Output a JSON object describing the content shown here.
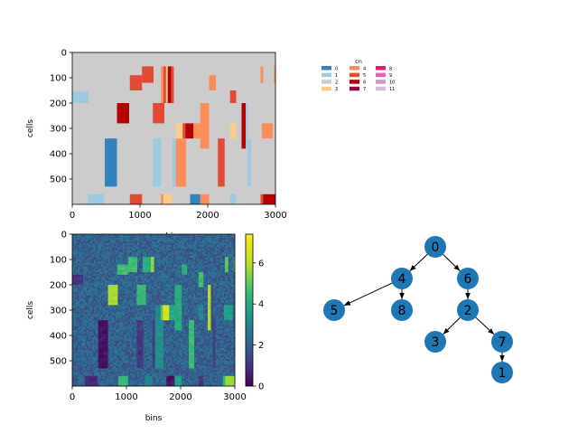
{
  "chart_data": [
    {
      "type": "heatmap",
      "panel": "copy-number-state",
      "xlabel": "bins",
      "ylabel": "cells",
      "xlim": [
        0,
        3000
      ],
      "ylim": [
        600,
        0
      ],
      "xticks": [
        0,
        1000,
        2000,
        3000
      ],
      "yticks": [
        0,
        100,
        200,
        300,
        400,
        500
      ],
      "background_state": 2,
      "segments": [
        {
          "state": 5,
          "x": [
            1030,
            1200
          ],
          "y": [
            55,
            120
          ]
        },
        {
          "state": 4,
          "x": [
            1310,
            1345
          ],
          "y": [
            55,
            200
          ]
        },
        {
          "state": 5,
          "x": [
            1345,
            1385
          ],
          "y": [
            55,
            200
          ]
        },
        {
          "state": 3,
          "x": [
            1385,
            1410
          ],
          "y": [
            55,
            200
          ]
        },
        {
          "state": 6,
          "x": [
            1410,
            1460
          ],
          "y": [
            55,
            200
          ]
        },
        {
          "state": 5,
          "x": [
            1460,
            1500
          ],
          "y": [
            55,
            200
          ]
        },
        {
          "state": 4,
          "x": [
            2780,
            2820
          ],
          "y": [
            55,
            120
          ]
        },
        {
          "state": 4,
          "x": [
            2980,
            3000
          ],
          "y": [
            55,
            120
          ]
        },
        {
          "state": 5,
          "x": [
            850,
            1030
          ],
          "y": [
            90,
            150
          ]
        },
        {
          "state": 4,
          "x": [
            2020,
            2120
          ],
          "y": [
            90,
            150
          ]
        },
        {
          "state": 5,
          "x": [
            2330,
            2420
          ],
          "y": [
            150,
            200
          ]
        },
        {
          "state": 1,
          "x": [
            0,
            240
          ],
          "y": [
            155,
            200
          ]
        },
        {
          "state": 6,
          "x": [
            660,
            840
          ],
          "y": [
            200,
            280
          ]
        },
        {
          "state": 5,
          "x": [
            1190,
            1360
          ],
          "y": [
            200,
            280
          ]
        },
        {
          "state": 4,
          "x": [
            1890,
            2020
          ],
          "y": [
            200,
            380
          ]
        },
        {
          "state": 6,
          "x": [
            2500,
            2560
          ],
          "y": [
            200,
            380
          ]
        },
        {
          "state": 1,
          "x": [
            2560,
            2590
          ],
          "y": [
            200,
            380
          ]
        },
        {
          "state": 3,
          "x": [
            1530,
            1630
          ],
          "y": [
            280,
            340
          ]
        },
        {
          "state": 5,
          "x": [
            1630,
            1670
          ],
          "y": [
            280,
            340
          ]
        },
        {
          "state": 6,
          "x": [
            1670,
            1790
          ],
          "y": [
            280,
            340
          ]
        },
        {
          "state": 4,
          "x": [
            1790,
            1890
          ],
          "y": [
            280,
            340
          ]
        },
        {
          "state": 3,
          "x": [
            2330,
            2420
          ],
          "y": [
            280,
            340
          ]
        },
        {
          "state": 4,
          "x": [
            2800,
            2960
          ],
          "y": [
            280,
            340
          ]
        },
        {
          "state": 0,
          "x": [
            480,
            660
          ],
          "y": [
            340,
            530
          ]
        },
        {
          "state": 1,
          "x": [
            1190,
            1310
          ],
          "y": [
            340,
            530
          ]
        },
        {
          "state": 1,
          "x": [
            1480,
            1530
          ],
          "y": [
            340,
            530
          ]
        },
        {
          "state": 4,
          "x": [
            1530,
            1680
          ],
          "y": [
            340,
            530
          ]
        },
        {
          "state": 5,
          "x": [
            2150,
            2250
          ],
          "y": [
            340,
            530
          ]
        },
        {
          "state": 1,
          "x": [
            2590,
            2640
          ],
          "y": [
            340,
            530
          ]
        },
        {
          "state": 1,
          "x": [
            230,
            470
          ],
          "y": [
            560,
            600
          ]
        },
        {
          "state": 5,
          "x": [
            850,
            1030
          ],
          "y": [
            560,
            600
          ]
        },
        {
          "state": 4,
          "x": [
            1310,
            1345
          ],
          "y": [
            560,
            600
          ]
        },
        {
          "state": 3,
          "x": [
            1345,
            1470
          ],
          "y": [
            560,
            600
          ]
        },
        {
          "state": 0,
          "x": [
            1740,
            1890
          ],
          "y": [
            560,
            600
          ]
        },
        {
          "state": 4,
          "x": [
            1890,
            2020
          ],
          "y": [
            560,
            600
          ]
        },
        {
          "state": 1,
          "x": [
            2330,
            2420
          ],
          "y": [
            560,
            600
          ]
        },
        {
          "state": 5,
          "x": [
            2780,
            2820
          ],
          "y": [
            560,
            600
          ]
        },
        {
          "state": 6,
          "x": [
            2820,
            3000
          ],
          "y": [
            560,
            600
          ]
        }
      ]
    },
    {
      "type": "legend",
      "panel": "copy-number-legend",
      "title": "cn",
      "entries": [
        {
          "label": "0",
          "color": "#3182bd"
        },
        {
          "label": "1",
          "color": "#9ecae1"
        },
        {
          "label": "2",
          "color": "#cccccc"
        },
        {
          "label": "3",
          "color": "#fdcc8a"
        },
        {
          "label": "4",
          "color": "#fc8d59"
        },
        {
          "label": "5",
          "color": "#e34a33"
        },
        {
          "label": "6",
          "color": "#b30000"
        },
        {
          "label": "7",
          "color": "#980043"
        },
        {
          "label": "8",
          "color": "#dd1c77"
        },
        {
          "label": "9",
          "color": "#df65b0"
        },
        {
          "label": "10",
          "color": "#c994c7"
        },
        {
          "label": "11",
          "color": "#d4b9da"
        }
      ]
    },
    {
      "type": "heatmap",
      "panel": "copy-number-raw",
      "xlabel": "bins",
      "ylabel": "cells",
      "xlim": [
        0,
        3000
      ],
      "ylim": [
        600,
        0
      ],
      "xticks": [
        0,
        1000,
        2000,
        3000
      ],
      "yticks": [
        0,
        100,
        200,
        300,
        400,
        500
      ],
      "colorbar": {
        "min": 0,
        "max": 7.4,
        "ticks": [
          0,
          2,
          4,
          6
        ],
        "colormap": "viridis"
      },
      "background_value": 2.1,
      "segments": [
        {
          "value": 4.6,
          "x": [
            1030,
            1200
          ],
          "y": [
            90,
            150
          ]
        },
        {
          "value": 4.2,
          "x": [
            1300,
            1450
          ],
          "y": [
            90,
            150
          ]
        },
        {
          "value": 5.5,
          "x": [
            1450,
            1510
          ],
          "y": [
            90,
            150
          ]
        },
        {
          "value": 5.0,
          "x": [
            2820,
            2880
          ],
          "y": [
            90,
            150
          ]
        },
        {
          "value": 5.2,
          "x": [
            2980,
            3000
          ],
          "y": [
            90,
            150
          ]
        },
        {
          "value": 4.6,
          "x": [
            830,
            1030
          ],
          "y": [
            120,
            160
          ]
        },
        {
          "value": 4.2,
          "x": [
            2020,
            2120
          ],
          "y": [
            120,
            160
          ]
        },
        {
          "value": 4.6,
          "x": [
            2330,
            2420
          ],
          "y": [
            150,
            210
          ]
        },
        {
          "value": 1.0,
          "x": [
            0,
            200
          ],
          "y": [
            160,
            200
          ]
        },
        {
          "value": 5.8,
          "x": [
            660,
            840
          ],
          "y": [
            200,
            280
          ]
        },
        {
          "value": 4.5,
          "x": [
            1190,
            1360
          ],
          "y": [
            200,
            280
          ]
        },
        {
          "value": 4.0,
          "x": [
            1890,
            2020
          ],
          "y": [
            200,
            380
          ]
        },
        {
          "value": 5.8,
          "x": [
            2500,
            2560
          ],
          "y": [
            200,
            380
          ]
        },
        {
          "value": 1.4,
          "x": [
            2560,
            2590
          ],
          "y": [
            200,
            380
          ]
        },
        {
          "value": 3.0,
          "x": [
            1530,
            1630
          ],
          "y": [
            280,
            340
          ]
        },
        {
          "value": 4.8,
          "x": [
            1630,
            1670
          ],
          "y": [
            280,
            340
          ]
        },
        {
          "value": 6.6,
          "x": [
            1670,
            1790
          ],
          "y": [
            280,
            340
          ]
        },
        {
          "value": 4.0,
          "x": [
            1790,
            1890
          ],
          "y": [
            280,
            340
          ]
        },
        {
          "value": 3.2,
          "x": [
            2330,
            2420
          ],
          "y": [
            280,
            340
          ]
        },
        {
          "value": 3.8,
          "x": [
            2800,
            2960
          ],
          "y": [
            280,
            340
          ]
        },
        {
          "value": 0.3,
          "x": [
            480,
            660
          ],
          "y": [
            340,
            530
          ]
        },
        {
          "value": 1.1,
          "x": [
            1190,
            1310
          ],
          "y": [
            340,
            530
          ]
        },
        {
          "value": 1.3,
          "x": [
            1480,
            1530
          ],
          "y": [
            340,
            530
          ]
        },
        {
          "value": 3.3,
          "x": [
            1530,
            1680
          ],
          "y": [
            340,
            530
          ]
        },
        {
          "value": 4.5,
          "x": [
            2150,
            2250
          ],
          "y": [
            340,
            530
          ]
        },
        {
          "value": 1.3,
          "x": [
            2590,
            2640
          ],
          "y": [
            340,
            530
          ]
        },
        {
          "value": 0.9,
          "x": [
            230,
            470
          ],
          "y": [
            560,
            600
          ]
        },
        {
          "value": 4.4,
          "x": [
            850,
            1030
          ],
          "y": [
            560,
            600
          ]
        },
        {
          "value": 3.0,
          "x": [
            1345,
            1470
          ],
          "y": [
            560,
            600
          ]
        },
        {
          "value": 0.4,
          "x": [
            1740,
            1890
          ],
          "y": [
            560,
            600
          ]
        },
        {
          "value": 3.8,
          "x": [
            1890,
            2020
          ],
          "y": [
            560,
            600
          ]
        },
        {
          "value": 1.1,
          "x": [
            2330,
            2420
          ],
          "y": [
            560,
            600
          ]
        },
        {
          "value": 4.4,
          "x": [
            2780,
            2820
          ],
          "y": [
            560,
            600
          ]
        },
        {
          "value": 5.6,
          "x": [
            2820,
            3000
          ],
          "y": [
            560,
            600
          ]
        }
      ]
    },
    {
      "type": "tree",
      "panel": "clone-tree",
      "node_color": "#1f77b4",
      "nodes": [
        "0",
        "4",
        "6",
        "5",
        "8",
        "2",
        "3",
        "7",
        "1"
      ],
      "edges": [
        [
          "0",
          "4"
        ],
        [
          "0",
          "6"
        ],
        [
          "4",
          "5"
        ],
        [
          "4",
          "8"
        ],
        [
          "6",
          "2"
        ],
        [
          "2",
          "3"
        ],
        [
          "2",
          "7"
        ],
        [
          "7",
          "1"
        ]
      ]
    }
  ]
}
